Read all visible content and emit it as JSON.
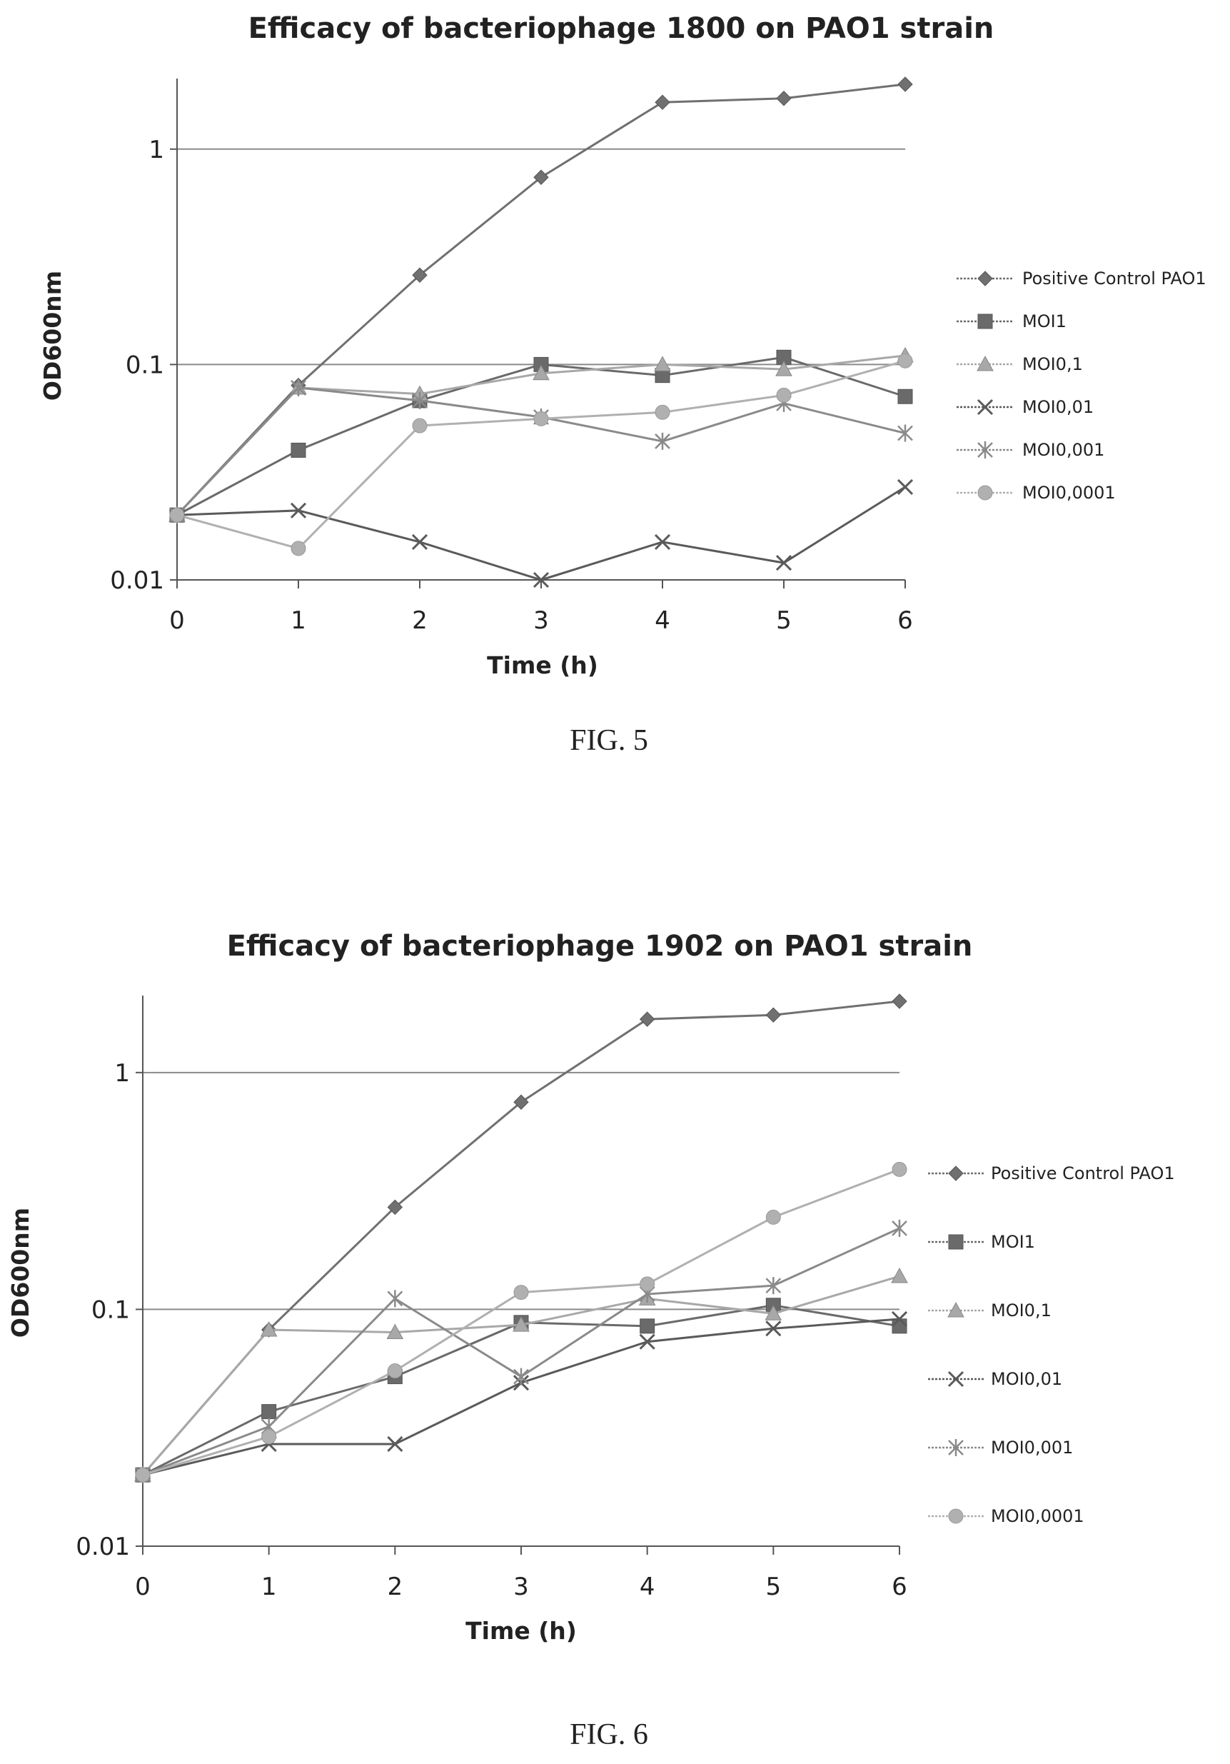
{
  "figures": [
    {
      "caption": "FIG. 5"
    },
    {
      "caption": "FIG. 6"
    }
  ],
  "chart_data": [
    {
      "type": "line",
      "title": "Efficacy of bacteriophage 1800 on PAO1 strain",
      "xlabel": "Time (h)",
      "ylabel": "OD600nm",
      "yscale": "log",
      "ylim": [
        0.01,
        2
      ],
      "xlim": [
        0,
        6
      ],
      "x": [
        0,
        1,
        2,
        3,
        4,
        5,
        6
      ],
      "x_ticks": [
        "0",
        "1",
        "2",
        "3",
        "4",
        "5",
        "6"
      ],
      "y_ticks": [
        {
          "value": 0.01,
          "label": "0.01"
        },
        {
          "value": 0.1,
          "label": "0.1"
        },
        {
          "value": 1,
          "label": "1"
        }
      ],
      "grid": "horizontal",
      "legend": "right",
      "series": [
        {
          "name": "Positive Control PAO1",
          "marker": "diamond",
          "color": "#707070",
          "values": [
            0.02,
            0.08,
            0.26,
            0.74,
            1.65,
            1.72,
            2.0
          ]
        },
        {
          "name": "MOI1",
          "marker": "square",
          "color": "#6a6a6a",
          "values": [
            0.02,
            0.04,
            0.068,
            0.1,
            0.089,
            0.108,
            0.071
          ]
        },
        {
          "name": "MOI0,1",
          "marker": "triangle",
          "color": "#a8a8a8",
          "values": [
            0.02,
            0.078,
            0.073,
            0.091,
            0.1,
            0.095,
            0.11
          ]
        },
        {
          "name": "MOI0,01",
          "marker": "x",
          "color": "#5a5a5a",
          "values": [
            0.02,
            0.021,
            0.015,
            0.01,
            0.015,
            0.012,
            0.027
          ]
        },
        {
          "name": "MOI0,001",
          "marker": "star",
          "color": "#8a8a8a",
          "values": [
            0.02,
            0.078,
            0.068,
            0.057,
            0.044,
            0.066,
            0.048
          ]
        },
        {
          "name": "MOI0,0001",
          "marker": "circle",
          "color": "#b0b0b0",
          "values": [
            0.02,
            0.014,
            0.052,
            0.056,
            0.06,
            0.072,
            0.104
          ]
        }
      ]
    },
    {
      "type": "line",
      "title": "Efficacy of bacteriophage 1902 on PAO1 strain",
      "xlabel": "Time (h)",
      "ylabel": "OD600nm",
      "yscale": "log",
      "ylim": [
        0.01,
        2
      ],
      "xlim": [
        0,
        6
      ],
      "x": [
        0,
        1,
        2,
        3,
        4,
        5,
        6
      ],
      "x_ticks": [
        "0",
        "1",
        "2",
        "3",
        "4",
        "5",
        "6"
      ],
      "y_ticks": [
        {
          "value": 0.01,
          "label": "0.01"
        },
        {
          "value": 0.1,
          "label": "0.1"
        },
        {
          "value": 1,
          "label": "1"
        }
      ],
      "grid": "horizontal",
      "legend": "right",
      "series": [
        {
          "name": "Positive Control PAO1",
          "marker": "diamond",
          "color": "#707070",
          "values": [
            0.02,
            0.082,
            0.27,
            0.75,
            1.68,
            1.75,
            2.0
          ]
        },
        {
          "name": "MOI1",
          "marker": "square",
          "color": "#6a6a6a",
          "values": [
            0.02,
            0.037,
            0.052,
            0.088,
            0.085,
            0.104,
            0.085
          ]
        },
        {
          "name": "MOI0,1",
          "marker": "triangle",
          "color": "#a8a8a8",
          "values": [
            0.02,
            0.082,
            0.08,
            0.086,
            0.111,
            0.096,
            0.138
          ]
        },
        {
          "name": "MOI0,01",
          "marker": "x",
          "color": "#5a5a5a",
          "values": [
            0.02,
            0.027,
            0.027,
            0.049,
            0.073,
            0.083,
            0.091
          ]
        },
        {
          "name": "MOI0,001",
          "marker": "star",
          "color": "#8a8a8a",
          "values": [
            0.02,
            0.032,
            0.111,
            0.052,
            0.116,
            0.126,
            0.22
          ]
        },
        {
          "name": "MOI0,0001",
          "marker": "circle",
          "color": "#b0b0b0",
          "values": [
            0.02,
            0.029,
            0.055,
            0.118,
            0.128,
            0.245,
            0.39
          ]
        }
      ]
    }
  ]
}
